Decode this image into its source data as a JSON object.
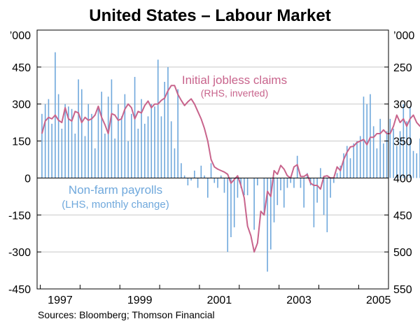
{
  "chart_data": {
    "type": "bar",
    "title": "United States – Labour Market",
    "source": "Sources: Bloomberg; Thomson Financial",
    "left_axis": {
      "unit": "’000",
      "ticks": [
        "450",
        "300",
        "150",
        "0",
        "-150",
        "-300",
        "-450"
      ],
      "tick_values": [
        450,
        300,
        150,
        0,
        -150,
        -300,
        -450
      ],
      "range": [
        -450,
        600
      ]
    },
    "right_axis": {
      "unit": "’000",
      "inverted": true,
      "ticks": [
        "250",
        "300",
        "350",
        "400",
        "450",
        "500",
        "550"
      ],
      "tick_values": [
        250,
        300,
        350,
        400,
        450,
        500,
        550
      ],
      "range": [
        200,
        550
      ]
    },
    "x_axis": {
      "labels": [
        "1997",
        "1999",
        "2001",
        "2003",
        "2005"
      ],
      "label_positions": [
        1997.5,
        1999.5,
        2001.5,
        2003.5,
        2005.5
      ],
      "range": [
        1996.92,
        2005.75
      ],
      "year_ticks": [
        1997,
        1998,
        1999,
        2000,
        2001,
        2002,
        2003,
        2004,
        2005
      ]
    },
    "grid": true,
    "series": [
      {
        "name": "Non-farm payrolls",
        "sublabel": "(LHS, monthly change)",
        "axis": "left",
        "type": "bar",
        "color": "#6fa8dc",
        "start": "1997-01",
        "values": [
          260,
          300,
          320,
          220,
          510,
          340,
          200,
          300,
          290,
          280,
          180,
          400,
          360,
          170,
          300,
          260,
          120,
          290,
          350,
          180,
          330,
          400,
          160,
          300,
          250,
          340,
          150,
          260,
          410,
          200,
          320,
          220,
          250,
          300,
          290,
          480,
          250,
          390,
          450,
          230,
          120,
          360,
          60,
          10,
          -30,
          -10,
          30,
          -40,
          50,
          10,
          -80,
          60,
          -20,
          -40,
          10,
          -60,
          -300,
          -240,
          -200,
          -80,
          -40,
          -70,
          -70,
          0,
          -210,
          -30,
          0,
          -150,
          -380,
          -290,
          -180,
          -110,
          -50,
          -120,
          -40,
          -20,
          -40,
          90,
          -40,
          -120,
          20,
          -30,
          -200,
          -100,
          40,
          -150,
          -220,
          -80,
          -20,
          20,
          50,
          100,
          130,
          80,
          140,
          150,
          170,
          330,
          300,
          340,
          210,
          120,
          240,
          140,
          190,
          240,
          200,
          130,
          190,
          300,
          230,
          290,
          110,
          100,
          160,
          150,
          260,
          300,
          120,
          140
        ]
      },
      {
        "name": "Initial jobless claims",
        "sublabel": "(RHS, inverted)",
        "axis": "right",
        "type": "line",
        "color": "#c8648c",
        "start": "1997-01",
        "values": [
          340,
          323,
          318,
          320,
          315,
          322,
          325,
          305,
          320,
          323,
          310,
          312,
          325,
          318,
          322,
          320,
          315,
          303,
          318,
          328,
          340,
          313,
          315,
          322,
          320,
          307,
          300,
          305,
          320,
          310,
          312,
          302,
          296,
          305,
          300,
          300,
          295,
          292,
          282,
          275,
          275,
          287,
          295,
          302,
          297,
          293,
          300,
          310,
          320,
          333,
          350,
          375,
          385,
          388,
          390,
          392,
          395,
          407,
          402,
          397,
          410,
          427,
          465,
          478,
          500,
          488,
          445,
          450,
          418,
          425,
          390,
          395,
          383,
          388,
          397,
          400,
          385,
          382,
          398,
          398,
          395,
          407,
          410,
          410,
          415,
          398,
          397,
          400,
          400,
          385,
          390,
          375,
          365,
          358,
          357,
          352,
          350,
          348,
          355,
          345,
          345,
          340,
          340,
          335,
          340,
          340,
          330,
          315,
          325,
          320,
          330,
          320,
          315,
          325,
          330,
          330,
          320,
          330,
          325,
          320
        ]
      }
    ]
  }
}
